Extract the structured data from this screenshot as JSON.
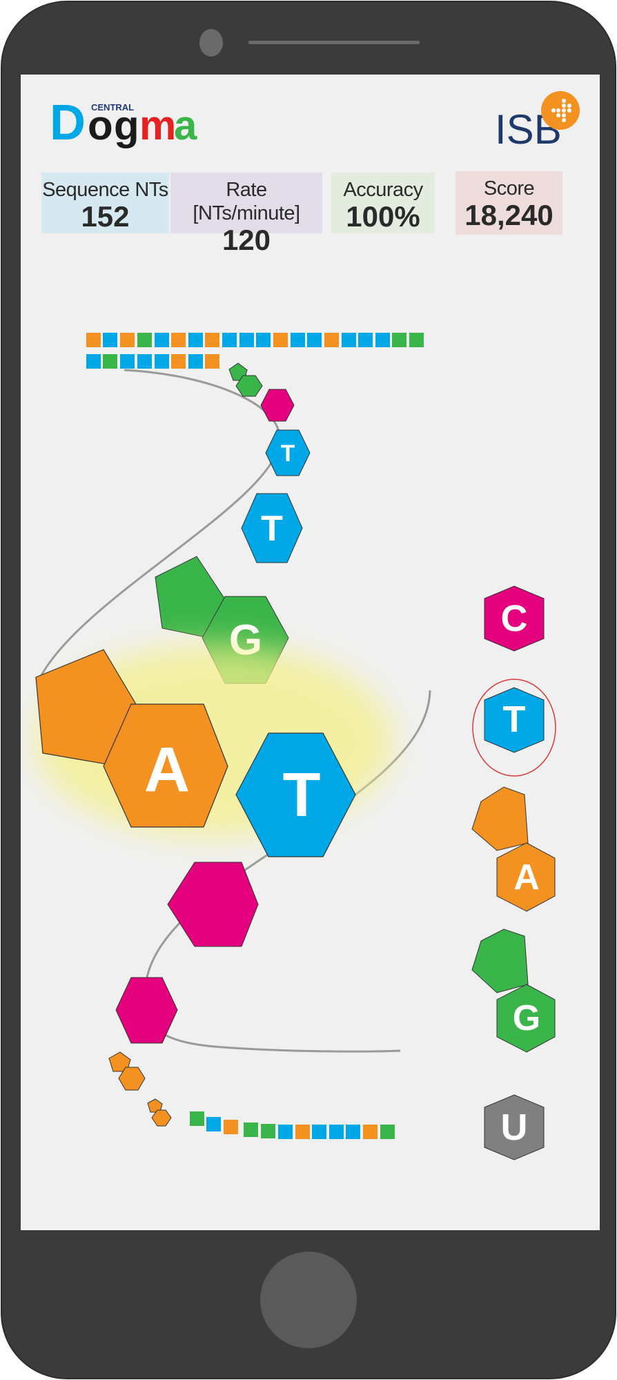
{
  "app": {
    "logo_small": "CENTRAL",
    "logo_letters": [
      "D",
      "o",
      "g",
      "m",
      "a"
    ],
    "partner_logo": "ISB"
  },
  "stats": [
    {
      "label": "Sequence NTs",
      "value": "152",
      "bg": "#d6e8f0"
    },
    {
      "label": "Rate [NTs/minute]",
      "value": "120",
      "bg": "#e2dde8"
    },
    {
      "label": "Accuracy",
      "value": "100%",
      "bg": "#e4ecdf"
    },
    {
      "label": "Score",
      "value": "18,240",
      "bg": "#efdcdc"
    }
  ],
  "game": {
    "active_pair": {
      "left": "A",
      "right": "T"
    },
    "strand_pieces": [
      "G",
      "T",
      "T",
      "A",
      "T"
    ],
    "palette": [
      {
        "label": "C",
        "color": "#e5007e",
        "name": "palette-c"
      },
      {
        "label": "T",
        "color": "#00a8e8",
        "name": "palette-t",
        "selected": true
      },
      {
        "label": "A",
        "color": "#f39121",
        "name": "palette-a"
      },
      {
        "label": "G",
        "color": "#3ab54a",
        "name": "palette-g"
      },
      {
        "label": "U",
        "color": "#808080",
        "name": "palette-u"
      }
    ]
  },
  "colors": {
    "A": "#f39121",
    "T": "#00a8e8",
    "G": "#3ab54a",
    "C": "#e5007e",
    "U": "#808080",
    "phone": "#3a3a3a"
  }
}
